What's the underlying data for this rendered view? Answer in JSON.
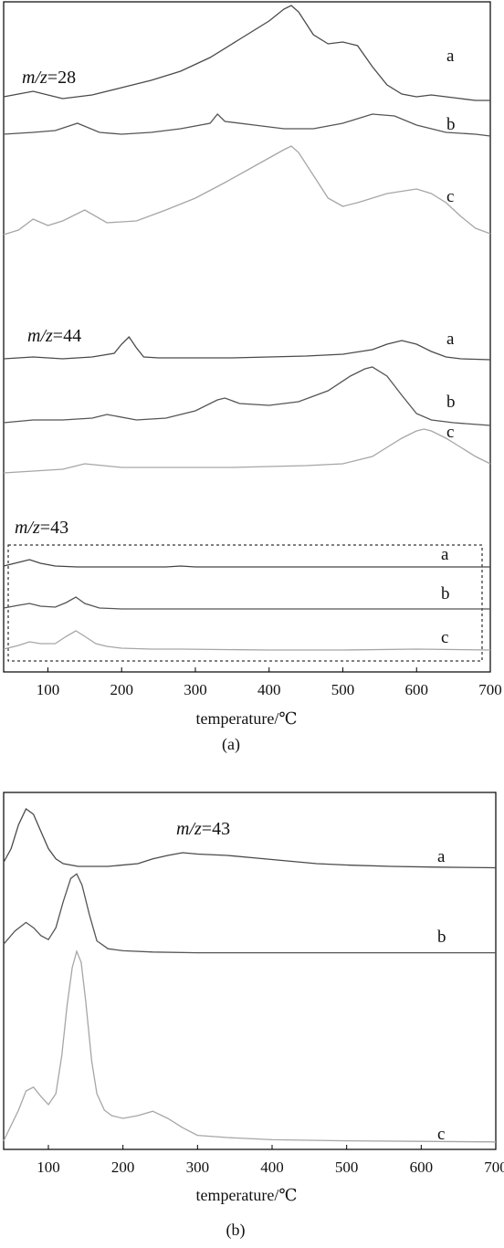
{
  "chart_data": [
    {
      "type": "line",
      "panel_label": "(a)",
      "xlabel": "temperature/℃",
      "xlim": [
        40,
        700
      ],
      "xticks": [
        100,
        200,
        300,
        400,
        500,
        600,
        700
      ],
      "groups": [
        {
          "label_prefix": "m/z",
          "label_value": "=28",
          "series": [
            {
              "name": "a",
              "color": "#4a4a4a",
              "x": [
                40,
                80,
                120,
                160,
                200,
                240,
                280,
                320,
                360,
                400,
                420,
                430,
                440,
                460,
                480,
                500,
                520,
                540,
                560,
                580,
                600,
                620,
                640,
                660,
                680,
                700
              ],
              "y": [
                12,
                18,
                10,
                14,
                22,
                30,
                40,
                55,
                75,
                95,
                108,
                112,
                105,
                80,
                70,
                72,
                68,
                45,
                25,
                15,
                12,
                14,
                12,
                10,
                8,
                8
              ]
            },
            {
              "name": "b",
              "color": "#555555",
              "x": [
                40,
                80,
                110,
                140,
                170,
                200,
                240,
                280,
                320,
                330,
                340,
                380,
                420,
                460,
                500,
                540,
                570,
                600,
                640,
                680,
                700
              ],
              "y": [
                8,
                10,
                12,
                20,
                10,
                8,
                10,
                14,
                20,
                30,
                22,
                18,
                14,
                14,
                20,
                30,
                28,
                18,
                10,
                8,
                6
              ]
            },
            {
              "name": "c",
              "color": "#a6a6a6",
              "x": [
                40,
                60,
                80,
                100,
                120,
                150,
                180,
                220,
                260,
                300,
                340,
                380,
                420,
                430,
                440,
                460,
                480,
                500,
                520,
                560,
                600,
                620,
                640,
                660,
                680,
                700
              ],
              "y": [
                5,
                10,
                22,
                15,
                20,
                32,
                18,
                20,
                32,
                45,
                62,
                80,
                98,
                102,
                95,
                70,
                45,
                36,
                40,
                50,
                55,
                50,
                40,
                25,
                12,
                6
              ]
            }
          ]
        },
        {
          "label_prefix": "m/z",
          "label_value": "=44",
          "series": [
            {
              "name": "a",
              "color": "#4a4a4a",
              "x": [
                40,
                80,
                120,
                160,
                190,
                200,
                210,
                220,
                230,
                250,
                300,
                350,
                400,
                450,
                500,
                540,
                560,
                580,
                600,
                620,
                640,
                660,
                700
              ],
              "y": [
                4,
                6,
                4,
                6,
                10,
                20,
                28,
                16,
                6,
                5,
                5,
                5,
                6,
                7,
                9,
                14,
                20,
                24,
                20,
                12,
                6,
                4,
                3
              ]
            },
            {
              "name": "b",
              "color": "#555555",
              "x": [
                40,
                80,
                120,
                160,
                180,
                220,
                260,
                300,
                330,
                340,
                360,
                400,
                440,
                480,
                510,
                530,
                540,
                560,
                580,
                600,
                620,
                650,
                700
              ],
              "y": [
                5,
                8,
                8,
                10,
                14,
                8,
                10,
                18,
                30,
                32,
                26,
                24,
                28,
                40,
                56,
                64,
                66,
                56,
                35,
                15,
                8,
                5,
                2
              ]
            },
            {
              "name": "c",
              "color": "#a6a6a6",
              "x": [
                40,
                80,
                120,
                150,
                200,
                250,
                300,
                350,
                400,
                450,
                500,
                540,
                560,
                580,
                600,
                610,
                620,
                640,
                660,
                680,
                700
              ],
              "y": [
                2,
                4,
                6,
                12,
                8,
                8,
                8,
                8,
                9,
                10,
                12,
                20,
                30,
                40,
                48,
                50,
                48,
                40,
                30,
                20,
                12
              ]
            }
          ]
        },
        {
          "label_prefix": "m/z",
          "label_value": "=43",
          "series": [
            {
              "name": "a",
              "color": "#444444",
              "x": [
                40,
                60,
                75,
                90,
                110,
                140,
                200,
                260,
                280,
                300,
                400,
                500,
                600,
                700
              ],
              "y": [
                2,
                6,
                9,
                5,
                2,
                1,
                1,
                1,
                2,
                1,
                1,
                1,
                1,
                1
              ]
            },
            {
              "name": "b",
              "color": "#555555",
              "x": [
                40,
                60,
                75,
                90,
                110,
                125,
                138,
                150,
                170,
                200,
                300,
                400,
                500,
                600,
                700
              ],
              "y": [
                2,
                5,
                7,
                4,
                3,
                8,
                14,
                7,
                2,
                1,
                1,
                1,
                1,
                1,
                1
              ]
            },
            {
              "name": "c",
              "color": "#a6a6a6",
              "x": [
                40,
                60,
                75,
                90,
                110,
                125,
                138,
                150,
                165,
                180,
                200,
                240,
                280,
                400,
                500,
                600,
                700
              ],
              "y": [
                2,
                6,
                10,
                8,
                8,
                16,
                22,
                16,
                8,
                5,
                3,
                2,
                2,
                1,
                1,
                2,
                1
              ]
            }
          ]
        }
      ]
    },
    {
      "type": "line",
      "panel_label": "(b)",
      "title_prefix": "m/z",
      "title_value": "=43",
      "xlabel": "temperature/℃",
      "xlim": [
        40,
        700
      ],
      "xticks": [
        100,
        200,
        300,
        400,
        500,
        600,
        700
      ],
      "series": [
        {
          "name": "a",
          "color": "#4a4a4a",
          "x": [
            40,
            50,
            60,
            70,
            80,
            90,
            100,
            110,
            120,
            140,
            180,
            220,
            240,
            260,
            280,
            300,
            340,
            380,
            420,
            460,
            500,
            560,
            620,
            700
          ],
          "y": [
            10,
            30,
            65,
            88,
            80,
            55,
            30,
            15,
            8,
            4,
            4,
            8,
            15,
            20,
            24,
            22,
            20,
            16,
            12,
            8,
            6,
            4,
            3,
            2
          ]
        },
        {
          "name": "b",
          "color": "#555555",
          "x": [
            40,
            55,
            70,
            80,
            90,
            100,
            110,
            120,
            130,
            138,
            145,
            155,
            165,
            180,
            200,
            240,
            300,
            400,
            500,
            600,
            700
          ],
          "y": [
            15,
            35,
            48,
            40,
            28,
            22,
            40,
            80,
            115,
            122,
            105,
            60,
            20,
            8,
            5,
            3,
            2,
            2,
            2,
            2,
            2
          ]
        },
        {
          "name": "c",
          "color": "#a6a6a6",
          "x": [
            40,
            60,
            70,
            80,
            90,
            100,
            110,
            118,
            125,
            132,
            138,
            144,
            150,
            158,
            165,
            175,
            185,
            200,
            220,
            240,
            260,
            280,
            300,
            340,
            400,
            500,
            600,
            700
          ],
          "y": [
            4,
            60,
            95,
            102,
            85,
            70,
            90,
            160,
            250,
            320,
            350,
            330,
            260,
            150,
            90,
            60,
            50,
            45,
            50,
            58,
            45,
            28,
            14,
            10,
            6,
            4,
            3,
            2
          ]
        }
      ]
    }
  ]
}
